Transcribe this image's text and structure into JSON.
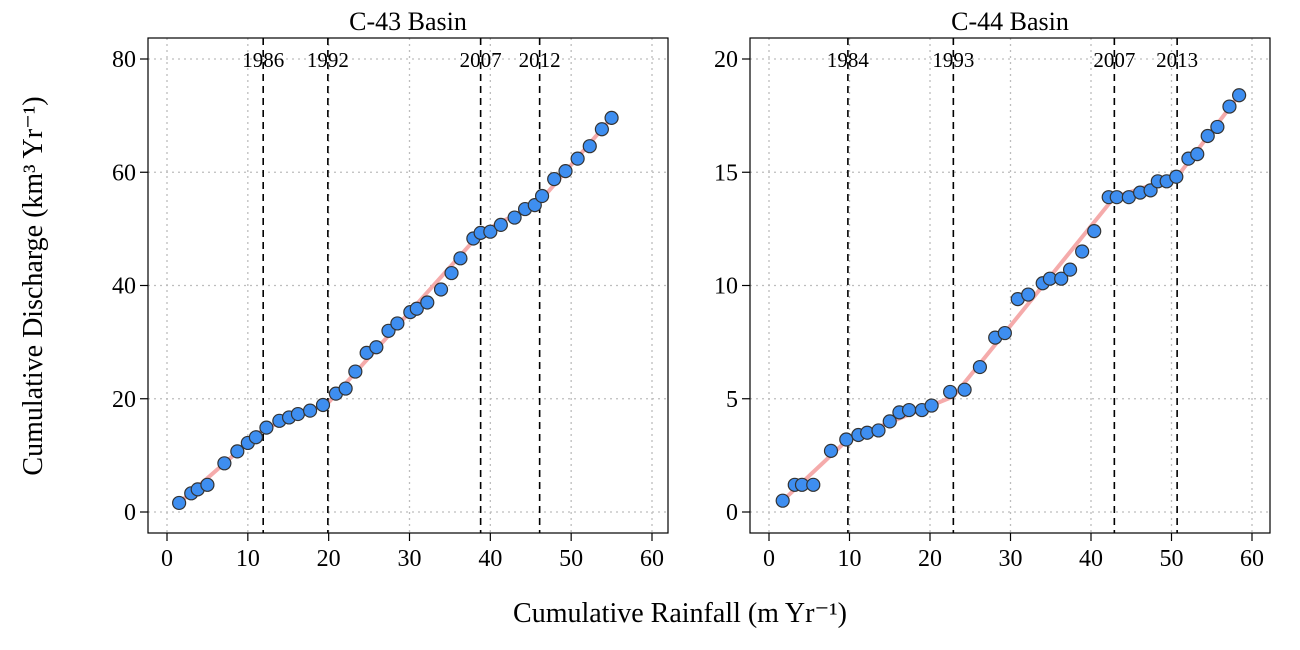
{
  "figure": {
    "xlabel": "Cumulative Rainfall (m Yr⁻¹)",
    "ylabel": "Cumulative Discharge (km³ Yr⁻¹)"
  },
  "chart_data": [
    {
      "type": "scatter",
      "title": "C-43 Basin",
      "xlim": [
        0,
        60
      ],
      "ylim": [
        0,
        80
      ],
      "xticks": [
        0,
        10,
        20,
        30,
        40,
        50,
        60
      ],
      "yticks": [
        0,
        20,
        40,
        60,
        80
      ],
      "grid": true,
      "vlines": [
        {
          "x": 11.9,
          "label": "1986"
        },
        {
          "x": 19.9,
          "label": "1992"
        },
        {
          "x": 38.8,
          "label": "2007"
        },
        {
          "x": 46.1,
          "label": "2012"
        }
      ],
      "fit_segments": [
        {
          "x": [
            1.5,
            11.9
          ],
          "y": [
            1.6,
            14.6
          ]
        },
        {
          "x": [
            11.9,
            19.9
          ],
          "y": [
            14.6,
            19.2
          ]
        },
        {
          "x": [
            19.9,
            38.8
          ],
          "y": [
            19.2,
            49.3
          ]
        },
        {
          "x": [
            38.8,
            46.1
          ],
          "y": [
            49.3,
            54.8
          ]
        },
        {
          "x": [
            46.1,
            55.0
          ],
          "y": [
            54.8,
            69.6
          ]
        }
      ],
      "points": {
        "x": [
          1.5,
          3.0,
          3.8,
          5.0,
          7.1,
          8.7,
          10.0,
          11.0,
          12.3,
          13.9,
          15.1,
          16.2,
          17.7,
          19.3,
          20.9,
          22.1,
          23.3,
          24.7,
          25.9,
          27.4,
          28.5,
          30.1,
          30.9,
          32.2,
          33.9,
          35.2,
          36.3,
          37.9,
          38.8,
          40.0,
          41.3,
          43.0,
          44.3,
          45.5,
          46.4,
          47.9,
          49.3,
          50.8,
          52.3,
          53.8,
          55.0
        ],
        "y": [
          1.6,
          3.3,
          4.0,
          4.8,
          8.6,
          10.7,
          12.2,
          13.2,
          14.9,
          16.1,
          16.7,
          17.3,
          17.9,
          18.9,
          20.9,
          21.8,
          24.8,
          28.1,
          29.1,
          32.0,
          33.3,
          35.3,
          35.9,
          37.0,
          39.3,
          42.2,
          44.8,
          48.3,
          49.3,
          49.5,
          50.7,
          52.0,
          53.5,
          54.2,
          55.8,
          58.8,
          60.2,
          62.4,
          64.6,
          67.6,
          69.6
        ]
      }
    },
    {
      "type": "scatter",
      "title": "C-44 Basin",
      "xlim": [
        0,
        60
      ],
      "ylim": [
        0,
        20
      ],
      "xticks": [
        0,
        10,
        20,
        30,
        40,
        50,
        60
      ],
      "yticks": [
        0,
        5,
        10,
        15,
        20
      ],
      "grid": true,
      "vlines": [
        {
          "x": 9.8,
          "label": "1984"
        },
        {
          "x": 22.9,
          "label": "1993"
        },
        {
          "x": 42.9,
          "label": "2007"
        },
        {
          "x": 50.7,
          "label": "2013"
        }
      ],
      "fit_segments": [
        {
          "x": [
            1.7,
            9.8
          ],
          "y": [
            0.5,
            3.2
          ]
        },
        {
          "x": [
            9.8,
            22.9
          ],
          "y": [
            3.2,
            5.1
          ]
        },
        {
          "x": [
            22.9,
            42.9
          ],
          "y": [
            5.1,
            13.9
          ]
        },
        {
          "x": [
            42.9,
            50.7
          ],
          "y": [
            13.9,
            14.8
          ]
        },
        {
          "x": [
            50.7,
            58.4
          ],
          "y": [
            14.8,
            18.4
          ]
        }
      ],
      "points": {
        "x": [
          1.7,
          3.2,
          4.1,
          5.5,
          7.7,
          9.6,
          11.1,
          12.2,
          13.6,
          15.0,
          16.2,
          17.4,
          19.0,
          20.2,
          22.5,
          24.3,
          26.2,
          28.1,
          29.3,
          30.9,
          32.2,
          34.0,
          34.9,
          36.3,
          37.4,
          38.9,
          40.4,
          42.2,
          43.2,
          44.7,
          46.1,
          47.4,
          48.3,
          49.4,
          50.6,
          52.1,
          53.2,
          54.5,
          55.7,
          57.2,
          58.4
        ],
        "y": [
          0.5,
          1.2,
          1.2,
          1.2,
          2.7,
          3.2,
          3.4,
          3.5,
          3.6,
          4.0,
          4.4,
          4.5,
          4.5,
          4.7,
          5.3,
          5.4,
          6.4,
          7.7,
          7.9,
          9.4,
          9.6,
          10.1,
          10.3,
          10.3,
          10.7,
          11.5,
          12.4,
          13.9,
          13.9,
          13.9,
          14.1,
          14.2,
          14.6,
          14.6,
          14.8,
          15.6,
          15.8,
          16.6,
          17.0,
          17.9,
          18.4
        ]
      }
    }
  ],
  "colors": {
    "marker_fill": "#3e8ef0",
    "marker_edge": "#333333",
    "fit_line": "#f4a3a3",
    "grid": "#bdbdbd",
    "frame": "#000000"
  }
}
